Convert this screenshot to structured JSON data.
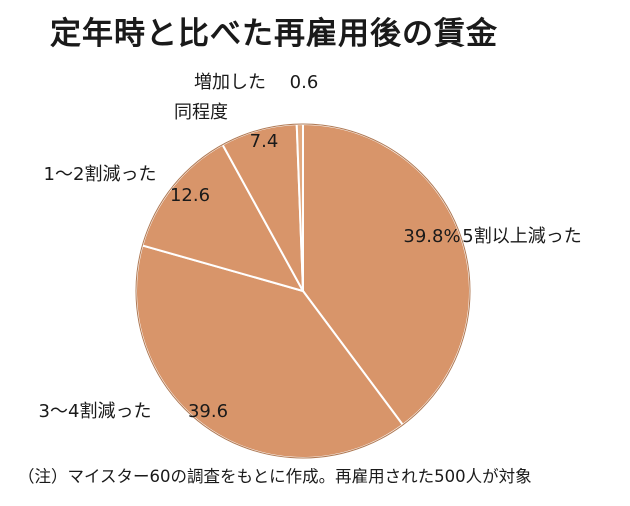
{
  "title": "定年時と比べた再雇用後の賃金",
  "note": "（注）マイスター60の調査をもとに作成。再雇用された500人が対象",
  "colors": {
    "slice_fill": "#d8956a",
    "slice_fill_small": "#e2a97f",
    "slice_border": "#ffffff",
    "outline": "#b07a55",
    "text": "#1a1a1a"
  },
  "chart_data": {
    "type": "pie",
    "title": "定年時と比べた再雇用後の賃金",
    "unit": "%",
    "slices": [
      {
        "label": "5割以上減った",
        "value": 39.8,
        "value_label": "39.8%"
      },
      {
        "label": "3〜4割減った",
        "value": 39.6,
        "value_label": "39.6"
      },
      {
        "label": "1〜2割減った",
        "value": 12.6,
        "value_label": "12.6"
      },
      {
        "label": "同程度",
        "value": 7.4,
        "value_label": "7.4"
      },
      {
        "label": "増加した",
        "value": 0.6,
        "value_label": "0.6"
      }
    ]
  }
}
